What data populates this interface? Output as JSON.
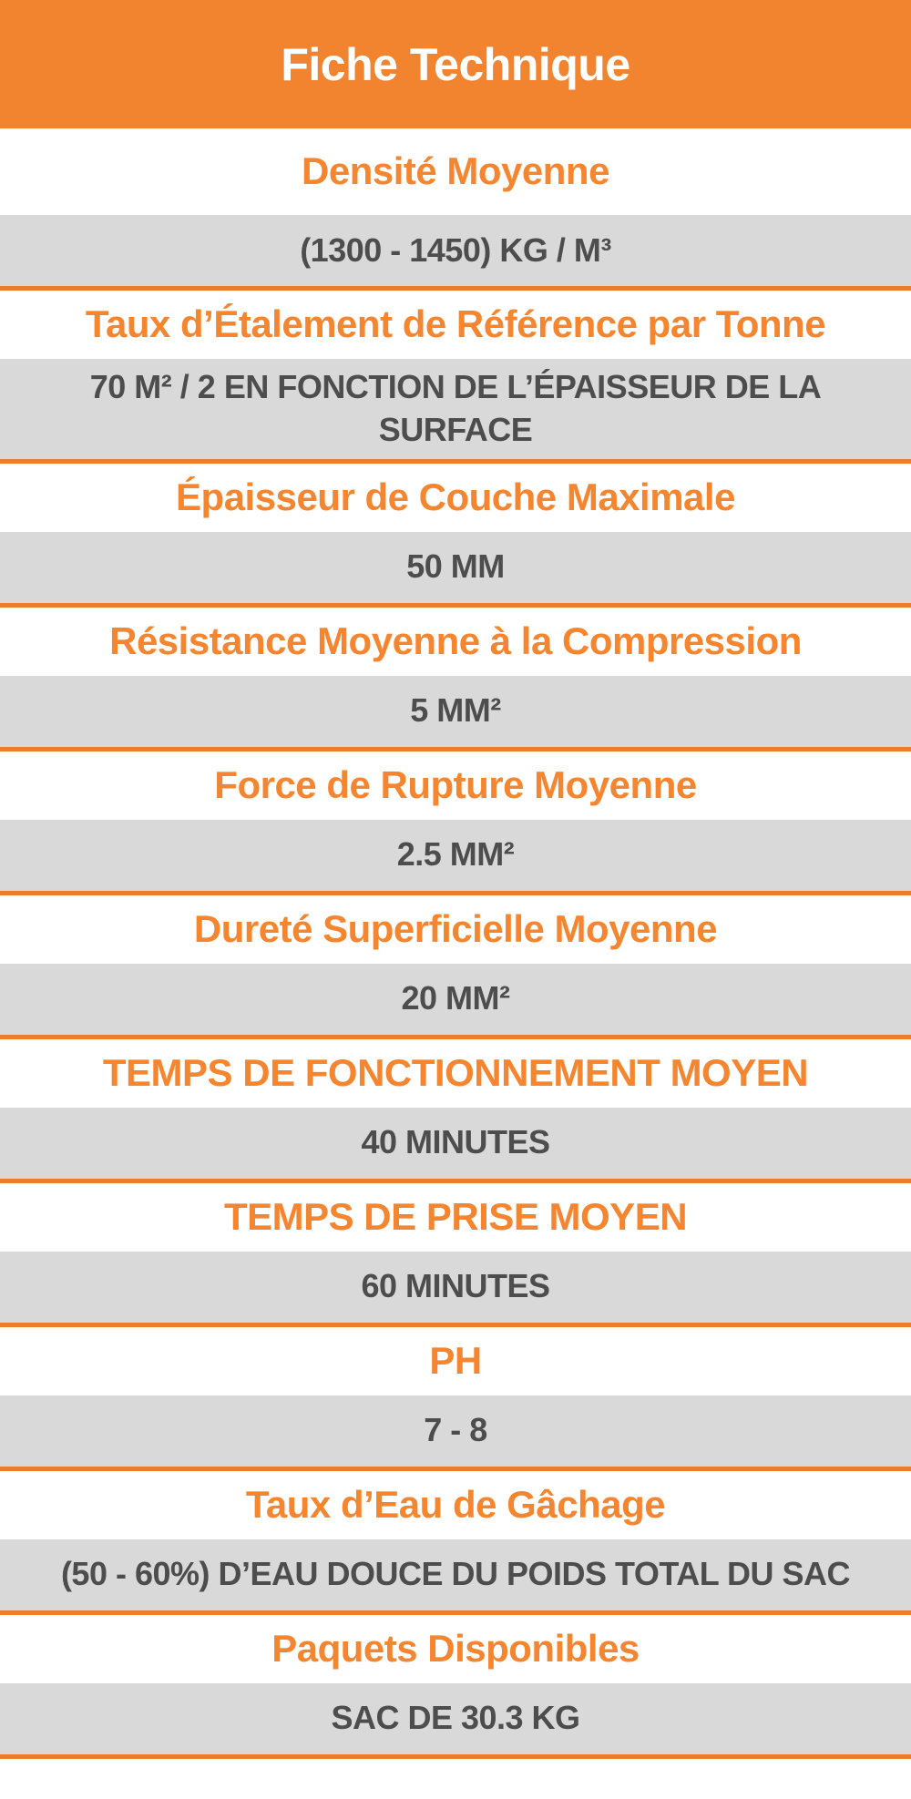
{
  "header": {
    "title": "Fiche Technique"
  },
  "colors": {
    "header_bg": "#F2832F",
    "label_text": "#F5862F",
    "separator_line": "#EE7D2B",
    "value_row_bg": "#D9D9D9",
    "value_text": "#4D4D4D",
    "title_text": "#FFFFFF"
  },
  "rows": [
    {
      "label": "Densité Moyenne",
      "value": "(1300 - 1450) KG / M³"
    },
    {
      "label": "Taux d’Étalement de Référence par Tonne",
      "value": "70 M² / 2 EN FONCTION DE L’ÉPAISSEUR DE LA SURFACE"
    },
    {
      "label": "Épaisseur de Couche Maximale",
      "value": "50 MM"
    },
    {
      "label": "Résistance Moyenne à la Compression",
      "value": "5 MM²"
    },
    {
      "label": "Force de Rupture Moyenne",
      "value": "2.5 MM²"
    },
    {
      "label": "Dureté Superficielle Moyenne",
      "value": "20 MM²"
    },
    {
      "label": "TEMPS DE FONCTIONNEMENT MOYEN",
      "value": "40 MINUTES"
    },
    {
      "label": "TEMPS DE PRISE MOYEN",
      "value": "60 MINUTES"
    },
    {
      "label": "PH",
      "value": "7 - 8"
    },
    {
      "label": "Taux d’Eau de Gâchage",
      "value": "(50 - 60%) D’EAU DOUCE DU POIDS TOTAL DU SAC"
    },
    {
      "label": "Paquets Disponibles",
      "value": "SAC DE 30.3 KG"
    }
  ]
}
